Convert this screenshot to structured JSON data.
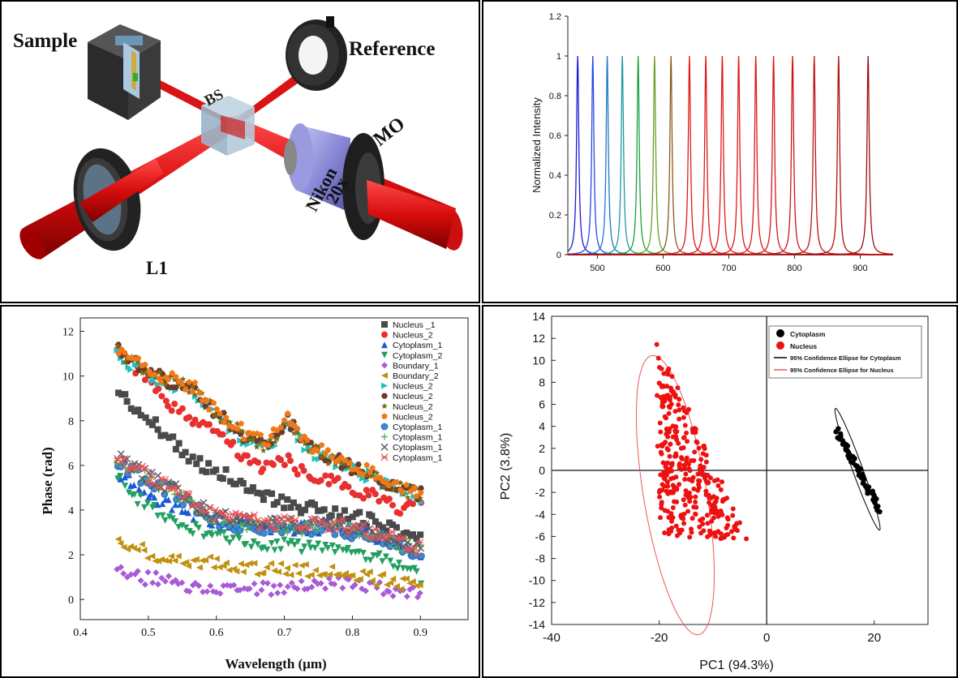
{
  "diagram": {
    "labels": {
      "sample": "Sample",
      "reference": "Reference",
      "bs": "BS",
      "mo": "MO",
      "nikon": "Nikon",
      "mag": "20x",
      "l1": "L1"
    },
    "colors": {
      "beam": "#e01010",
      "beam_dark": "#8a0000",
      "mount": "#2b2b2b",
      "objective": "#8f8fd8",
      "cube": "#a9c4d6"
    }
  },
  "chart_data": [
    {
      "id": "spectra",
      "type": "line",
      "title": "",
      "xlabel": "",
      "ylabel": "Normalized Intensity",
      "xlim": [
        455,
        950
      ],
      "ylim": [
        0,
        1.2
      ],
      "xticks": [
        "500",
        "600",
        "700",
        "800",
        "900"
      ],
      "xtick_values": [
        500,
        600,
        700,
        800,
        900
      ],
      "yticks": [
        "0",
        "0.2",
        "0.4",
        "0.6",
        "0.8",
        "1",
        "1.2"
      ],
      "ytick_values": [
        0,
        0.2,
        0.4,
        0.6,
        0.8,
        1.0,
        1.2
      ],
      "line_shape": "lorentzian",
      "peak_height": 1,
      "peak_fwhm_nm": 4,
      "peaks": [
        {
          "center": 470,
          "color": "#1a1ad6"
        },
        {
          "center": 493,
          "color": "#2a48e0"
        },
        {
          "center": 515,
          "color": "#1f78c8"
        },
        {
          "center": 538,
          "color": "#1a9aa0"
        },
        {
          "center": 562,
          "color": "#1aa03a"
        },
        {
          "center": 587,
          "color": "#6aa028"
        },
        {
          "center": 612,
          "color": "#8a5a1a"
        },
        {
          "center": 640,
          "color": "#e01818"
        },
        {
          "center": 665,
          "color": "#e01818"
        },
        {
          "center": 690,
          "color": "#e01818"
        },
        {
          "center": 715,
          "color": "#e01818"
        },
        {
          "center": 741,
          "color": "#dd1818"
        },
        {
          "center": 768,
          "color": "#d81818"
        },
        {
          "center": 797,
          "color": "#cc1515"
        },
        {
          "center": 830,
          "color": "#c21212"
        },
        {
          "center": 867,
          "color": "#b01010"
        },
        {
          "center": 912,
          "color": "#a00c0c"
        }
      ]
    },
    {
      "id": "phase",
      "type": "scatter",
      "title": "",
      "xlabel": "Wavelength (μm)",
      "ylabel": "Phase (rad)",
      "xlim": [
        0.4,
        0.97
      ],
      "ylim": [
        -0.9,
        12.6
      ],
      "xticks": [
        "0.4",
        "0.5",
        "0.6",
        "0.7",
        "0.8",
        "0.9"
      ],
      "xtick_values": [
        0.4,
        0.5,
        0.6,
        0.7,
        0.8,
        0.9
      ],
      "yticks": [
        "0",
        "2",
        "4",
        "6",
        "8",
        "10",
        "12"
      ],
      "ytick_values": [
        0,
        2,
        4,
        6,
        8,
        10,
        12
      ],
      "x_range": [
        0.455,
        0.9
      ],
      "n_points": 90,
      "series": [
        {
          "name": "Nucleus _1",
          "marker": "square",
          "color": "#4a4a4a",
          "values": [
            9.4,
            8.4,
            7.8,
            6.9,
            6.2,
            5.9,
            5.4,
            5.0,
            4.6,
            4.3,
            4.1,
            4.0,
            3.8,
            3.6,
            3.3,
            2.9,
            2.7
          ]
        },
        {
          "name": "Nucleus_2",
          "marker": "circle",
          "color": "#e83030",
          "values": [
            11.3,
            10.2,
            9.6,
            8.6,
            7.8,
            7.5,
            6.9,
            6.2,
            5.8,
            6.3,
            5.5,
            5.4,
            5.1,
            4.8,
            4.4,
            4.0,
            4.6
          ]
        },
        {
          "name": "Cytoplasm_1",
          "marker": "triangle-up",
          "color": "#1a5ad8",
          "values": [
            5.6,
            5.0,
            4.5,
            4.1,
            3.7,
            3.6,
            3.5,
            3.4,
            3.3,
            3.3,
            3.2,
            3.3,
            3.1,
            3.0,
            2.8,
            2.5,
            2.2
          ]
        },
        {
          "name": "Cytoplasm_2",
          "marker": "triangle-down",
          "color": "#21a060",
          "values": [
            5.4,
            4.6,
            4.0,
            3.5,
            3.1,
            2.9,
            2.7,
            2.6,
            2.5,
            2.5,
            2.3,
            2.2,
            2.1,
            2.0,
            1.8,
            1.4,
            1.0
          ]
        },
        {
          "name": "Boundary_1",
          "marker": "diamond",
          "color": "#a85ad8",
          "values": [
            1.3,
            1.0,
            0.9,
            0.7,
            0.5,
            0.4,
            0.4,
            0.5,
            0.5,
            0.6,
            0.6,
            0.7,
            0.7,
            0.6,
            0.5,
            0.4,
            0.3
          ]
        },
        {
          "name": "Boundary_2",
          "marker": "triangle-left",
          "color": "#c09010",
          "values": [
            2.6,
            2.3,
            2.0,
            1.8,
            1.7,
            1.6,
            1.5,
            1.4,
            1.4,
            1.3,
            1.3,
            1.2,
            1.1,
            1.0,
            0.9,
            0.7,
            0.5
          ]
        },
        {
          "name": "Nucleus_2",
          "marker": "triangle-right",
          "color": "#20c0c0",
          "values": [
            11.0,
            10.4,
            9.9,
            9.6,
            9.4,
            8.4,
            7.7,
            7.0,
            6.8,
            8.0,
            6.8,
            6.3,
            6.0,
            5.6,
            5.2,
            4.8,
            4.6
          ]
        },
        {
          "name": "Nucleus_2",
          "marker": "hexagon",
          "color": "#6a3a2a",
          "values": [
            11.2,
            10.5,
            10.0,
            9.7,
            9.5,
            8.5,
            7.8,
            7.1,
            6.9,
            8.1,
            6.9,
            6.4,
            6.1,
            5.7,
            5.3,
            4.9,
            4.7
          ]
        },
        {
          "name": "Nucleus_2",
          "marker": "star",
          "color": "#7a6a10",
          "values": [
            11.1,
            10.5,
            10.0,
            9.7,
            9.5,
            8.5,
            7.8,
            7.1,
            6.9,
            8.1,
            6.9,
            6.4,
            6.1,
            5.7,
            5.3,
            4.9,
            4.7
          ]
        },
        {
          "name": "Nucleus_2",
          "marker": "pentagon",
          "color": "#f07818",
          "values": [
            11.3,
            10.6,
            10.1,
            9.8,
            9.6,
            8.6,
            7.9,
            7.2,
            7.0,
            8.2,
            7.0,
            6.5,
            6.2,
            5.8,
            5.4,
            5.0,
            4.8
          ]
        },
        {
          "name": "Cytoplasm_1",
          "marker": "sphere",
          "color": "#3a8ad8",
          "values": [
            6.2,
            5.6,
            5.1,
            4.8,
            4.1,
            3.6,
            3.4,
            3.3,
            3.2,
            3.2,
            3.1,
            3.2,
            3.1,
            2.9,
            2.7,
            2.4,
            2.1
          ]
        },
        {
          "name": "Cytoplasm_1",
          "marker": "plus",
          "color": "#50b050",
          "values": [
            6.3,
            5.7,
            5.2,
            4.9,
            4.2,
            3.7,
            3.5,
            3.4,
            3.3,
            3.3,
            3.2,
            3.3,
            3.2,
            3.0,
            2.8,
            2.5,
            2.2
          ]
        },
        {
          "name": "Cytoplasm_1",
          "marker": "x",
          "color": "#555566",
          "values": [
            6.4,
            5.8,
            5.3,
            5.0,
            4.3,
            3.8,
            3.6,
            3.5,
            3.4,
            3.4,
            3.3,
            3.4,
            3.3,
            3.1,
            2.9,
            2.6,
            2.3
          ]
        },
        {
          "name": "Cytoplasm_1",
          "marker": "asterisk",
          "color": "#e85050",
          "values": [
            6.4,
            5.8,
            5.3,
            5.0,
            4.3,
            3.8,
            3.6,
            3.5,
            3.4,
            3.4,
            3.3,
            3.4,
            3.3,
            3.1,
            2.9,
            2.6,
            2.3
          ]
        }
      ]
    },
    {
      "id": "pca",
      "type": "scatter",
      "title": "",
      "xlabel": "PC1 (94.3%)",
      "ylabel": "PC2 (3.8%)",
      "xlim": [
        -40,
        30
      ],
      "ylim": [
        -14,
        14
      ],
      "xticks": [
        "-40",
        "-20",
        "0",
        "20"
      ],
      "xtick_values": [
        -40,
        -20,
        0,
        20
      ],
      "yticks": [
        "-14",
        "-12",
        "-10",
        "-8",
        "-6",
        "-4",
        "-2",
        "0",
        "2",
        "4",
        "6",
        "8",
        "10",
        "12",
        "14"
      ],
      "ytick_values": [
        -14,
        -12,
        -10,
        -8,
        -6,
        -4,
        -2,
        0,
        2,
        4,
        6,
        8,
        10,
        12,
        14
      ],
      "legend": [
        "Cytoplasm",
        "Nucleus",
        "95% Confidence Ellipse for Cytoplasm",
        "95% Confidence Ellipse for Nucleus"
      ],
      "series": [
        {
          "name": "Cytoplasm",
          "color": "#000000",
          "start": [
            13,
            3.5
          ],
          "end": [
            21,
            -3.5
          ],
          "n_points": 60
        },
        {
          "name": "Nucleus",
          "color": "#ee1111",
          "apex": [
            -20.5,
            11.8
          ],
          "bottom_start": [
            -20,
            -6.2
          ],
          "bottom_end": [
            -3.5,
            -6.3
          ],
          "n_points": 320
        }
      ],
      "ellipses": [
        {
          "name": "95% Confidence Ellipse for Cytoplasm",
          "color": "#000000",
          "center": [
            16.9,
            0.1
          ],
          "semi_major": 6.9,
          "semi_minor": 0.8,
          "angle_deg": -53
        },
        {
          "name": "95% Confidence Ellipse for Nucleus",
          "color": "#ee5555",
          "center": [
            -17,
            -2.25
          ],
          "semi_major": 13.5,
          "semi_minor": 5.6,
          "angle_deg": -68
        }
      ]
    }
  ]
}
